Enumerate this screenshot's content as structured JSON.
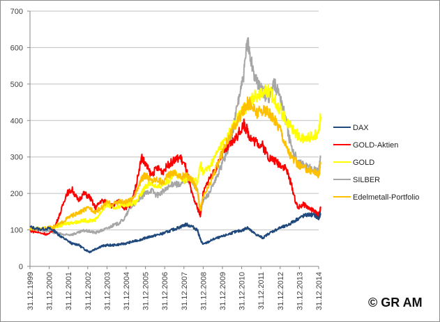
{
  "chart_data": {
    "type": "line",
    "title": "",
    "xlabel": "",
    "ylabel": "",
    "ylim": [
      0,
      700
    ],
    "yticks": [
      "0",
      "100",
      "200",
      "300",
      "400",
      "500",
      "600",
      "700"
    ],
    "xticks": [
      "31.12.1999",
      "31.12.2000",
      "31.12.2001",
      "31.12.2002",
      "31.12.2003",
      "31.12.2004",
      "31.12.2005",
      "31.12.2006",
      "31.12.2007",
      "31.12.2008",
      "31.12.2009",
      "31.12.2010",
      "31.12.2011",
      "31.12.2012",
      "31.12.2013",
      "31.12.2014"
    ],
    "xlim": [
      1999.0,
      2014.1
    ],
    "grid": true,
    "legend_position": "right",
    "x": [
      1999.0,
      1999.5,
      2000.0,
      2000.3,
      2000.6,
      2000.9,
      2001.2,
      2001.5,
      2001.8,
      2002.1,
      2002.4,
      2002.7,
      2003.0,
      2003.3,
      2003.6,
      2003.9,
      2004.2,
      2004.5,
      2004.8,
      2005.0,
      2005.3,
      2005.6,
      2005.9,
      2006.2,
      2006.5,
      2006.8,
      2007.1,
      2007.4,
      2007.7,
      2007.85,
      2008.0,
      2008.3,
      2008.6,
      2008.9,
      2009.2,
      2009.5,
      2009.8,
      2010.1,
      2010.3,
      2010.5,
      2010.8,
      2011.1,
      2011.4,
      2011.7,
      2012.0,
      2012.3,
      2012.6,
      2012.9,
      2013.2,
      2013.5,
      2013.8,
      2014.0,
      2014.1
    ],
    "series": [
      {
        "name": "DAX",
        "color": "#1f497d",
        "values": [
          108,
          102,
          104,
          96,
          82,
          72,
          62,
          60,
          48,
          40,
          48,
          55,
          58,
          58,
          60,
          62,
          66,
          70,
          74,
          78,
          82,
          86,
          90,
          96,
          102,
          108,
          115,
          110,
          100,
          74,
          60,
          68,
          76,
          80,
          86,
          92,
          96,
          100,
          108,
          96,
          86,
          78,
          90,
          98,
          106,
          110,
          120,
          130,
          138,
          142,
          140,
          130,
          146
        ]
      },
      {
        "name": "GOLD-Aktien",
        "color": "#ff0000",
        "values": [
          98,
          92,
          88,
          110,
          150,
          200,
          210,
          180,
          200,
          190,
          160,
          180,
          175,
          165,
          180,
          160,
          165,
          220,
          300,
          280,
          250,
          270,
          260,
          280,
          290,
          300,
          270,
          200,
          160,
          140,
          200,
          240,
          260,
          300,
          320,
          340,
          360,
          390,
          370,
          350,
          340,
          330,
          300,
          290,
          280,
          270,
          220,
          160,
          170,
          160,
          150,
          140,
          160
        ]
      },
      {
        "name": "GOLD",
        "color": "#ffff00",
        "values": [
          102,
          106,
          104,
          108,
          112,
          118,
          120,
          122,
          126,
          125,
          128,
          150,
          170,
          160,
          165,
          170,
          172,
          175,
          200,
          220,
          230,
          215,
          225,
          235,
          260,
          240,
          235,
          245,
          230,
          280,
          260,
          270,
          300,
          330,
          350,
          380,
          410,
          430,
          440,
          460,
          470,
          480,
          480,
          460,
          430,
          400,
          380,
          360,
          350,
          355,
          360,
          370,
          410
        ]
      },
      {
        "name": "SILBER",
        "color": "#a6a6a6",
        "values": [
          104,
          100,
          98,
          92,
          88,
          86,
          88,
          92,
          98,
          96,
          92,
          98,
          104,
          112,
          118,
          130,
          160,
          175,
          190,
          200,
          210,
          195,
          205,
          215,
          230,
          220,
          240,
          230,
          210,
          150,
          180,
          200,
          230,
          270,
          310,
          360,
          450,
          520,
          620,
          560,
          500,
          480,
          460,
          500,
          470,
          400,
          320,
          290,
          280,
          270,
          265,
          260,
          300
        ]
      },
      {
        "name": "Edelmetall-Portfolio",
        "color": "#ffc000",
        "values": [
          102,
          104,
          106,
          110,
          118,
          130,
          140,
          145,
          155,
          160,
          150,
          160,
          175,
          170,
          178,
          175,
          180,
          200,
          240,
          250,
          235,
          240,
          230,
          250,
          260,
          245,
          250,
          240,
          210,
          150,
          190,
          220,
          260,
          300,
          340,
          370,
          400,
          430,
          450,
          440,
          420,
          430,
          420,
          400,
          380,
          330,
          300,
          280,
          270,
          265,
          260,
          250,
          280
        ]
      }
    ]
  },
  "footer": {
    "copyright": "© GR AM"
  }
}
